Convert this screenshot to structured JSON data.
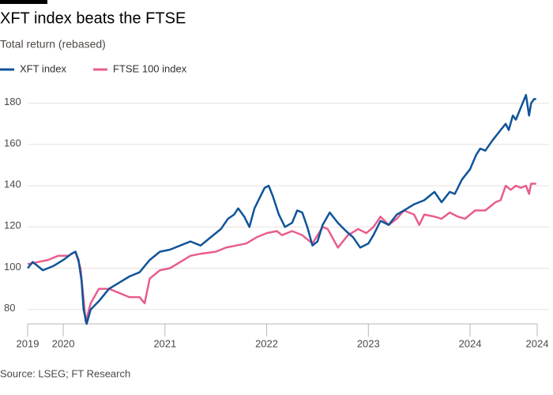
{
  "chart_data": {
    "type": "line",
    "title": "XFT index beats the FTSE",
    "subtitle": "Total return (rebased)",
    "source": "Source: LSEG; FT Research",
    "grid": true,
    "legend": "top-left",
    "xlim": [
      2019.65,
      2024.66
    ],
    "xticks": [
      {
        "value": 2019.65,
        "label": "2019"
      },
      2020,
      2021,
      2022,
      2023,
      2024,
      {
        "value": 2024.66,
        "label": "2024"
      }
    ],
    "ylim": [
      73,
      186
    ],
    "yticks": [
      80,
      100,
      120,
      140,
      160,
      180
    ],
    "series": [
      {
        "name": "XFT index",
        "color": "#0f5499",
        "x": [
          2019.65,
          2019.7,
          2019.75,
          2019.8,
          2019.9,
          2020.0,
          2020.08,
          2020.12,
          2020.15,
          2020.18,
          2020.2,
          2020.23,
          2020.27,
          2020.35,
          2020.45,
          2020.55,
          2020.65,
          2020.75,
          2020.85,
          2020.95,
          2021.05,
          2021.15,
          2021.25,
          2021.35,
          2021.45,
          2021.55,
          2021.62,
          2021.68,
          2021.72,
          2021.78,
          2021.83,
          2021.88,
          2021.93,
          2021.98,
          2022.02,
          2022.06,
          2022.12,
          2022.18,
          2022.25,
          2022.3,
          2022.35,
          2022.4,
          2022.45,
          2022.5,
          2022.55,
          2022.62,
          2022.7,
          2022.78,
          2022.85,
          2022.92,
          2023.0,
          2023.05,
          2023.12,
          2023.2,
          2023.28,
          2023.35,
          2023.45,
          2023.55,
          2023.65,
          2023.72,
          2023.8,
          2023.85,
          2023.92,
          2024.0,
          2024.06,
          2024.1,
          2024.15,
          2024.22,
          2024.3,
          2024.35,
          2024.38,
          2024.42,
          2024.45,
          2024.5,
          2024.55,
          2024.58,
          2024.6,
          2024.63,
          2024.65
        ],
        "values": [
          100,
          103,
          101,
          99,
          101,
          104,
          107,
          108,
          104,
          94,
          80,
          73,
          80,
          84,
          90,
          93,
          96,
          98,
          104,
          108,
          109,
          111,
          113,
          111,
          115,
          119,
          124,
          126,
          129,
          125,
          120,
          129,
          134,
          139,
          140,
          135,
          126,
          120,
          122,
          128,
          127,
          120,
          111,
          113,
          121,
          127,
          122,
          118,
          115,
          110,
          112,
          116,
          123,
          121,
          126,
          128,
          131,
          133,
          137,
          132,
          137,
          136,
          143,
          148,
          155,
          158,
          157,
          162,
          167,
          170,
          167,
          174,
          172,
          178,
          184,
          174,
          180,
          182,
          182
        ]
      },
      {
        "name": "FTSE 100 index",
        "color": "#e95d8c",
        "x": [
          2019.65,
          2019.75,
          2019.85,
          2019.95,
          2020.05,
          2020.12,
          2020.17,
          2020.2,
          2020.22,
          2020.27,
          2020.35,
          2020.45,
          2020.55,
          2020.65,
          2020.75,
          2020.8,
          2020.85,
          2020.95,
          2021.05,
          2021.15,
          2021.25,
          2021.35,
          2021.5,
          2021.6,
          2021.7,
          2021.8,
          2021.9,
          2022.0,
          2022.1,
          2022.15,
          2022.25,
          2022.35,
          2022.45,
          2022.55,
          2022.6,
          2022.7,
          2022.8,
          2022.9,
          2022.98,
          2023.05,
          2023.12,
          2023.2,
          2023.28,
          2023.35,
          2023.45,
          2023.5,
          2023.55,
          2023.65,
          2023.72,
          2023.8,
          2023.88,
          2023.95,
          2024.05,
          2024.15,
          2024.25,
          2024.3,
          2024.35,
          2024.4,
          2024.45,
          2024.5,
          2024.55,
          2024.58,
          2024.6,
          2024.65
        ],
        "values": [
          102,
          103,
          104,
          106,
          106,
          108,
          100,
          85,
          74,
          83,
          90,
          90,
          88,
          86,
          86,
          83,
          95,
          99,
          100,
          103,
          106,
          107,
          108,
          110,
          111,
          112,
          115,
          117,
          118,
          116,
          118,
          116,
          112,
          120,
          119,
          110,
          116,
          119,
          117,
          120,
          125,
          121,
          124,
          128,
          126,
          121,
          126,
          125,
          124,
          127,
          125,
          124,
          128,
          128,
          132,
          133,
          140,
          138,
          140,
          139,
          140,
          136,
          141,
          141
        ]
      }
    ]
  }
}
